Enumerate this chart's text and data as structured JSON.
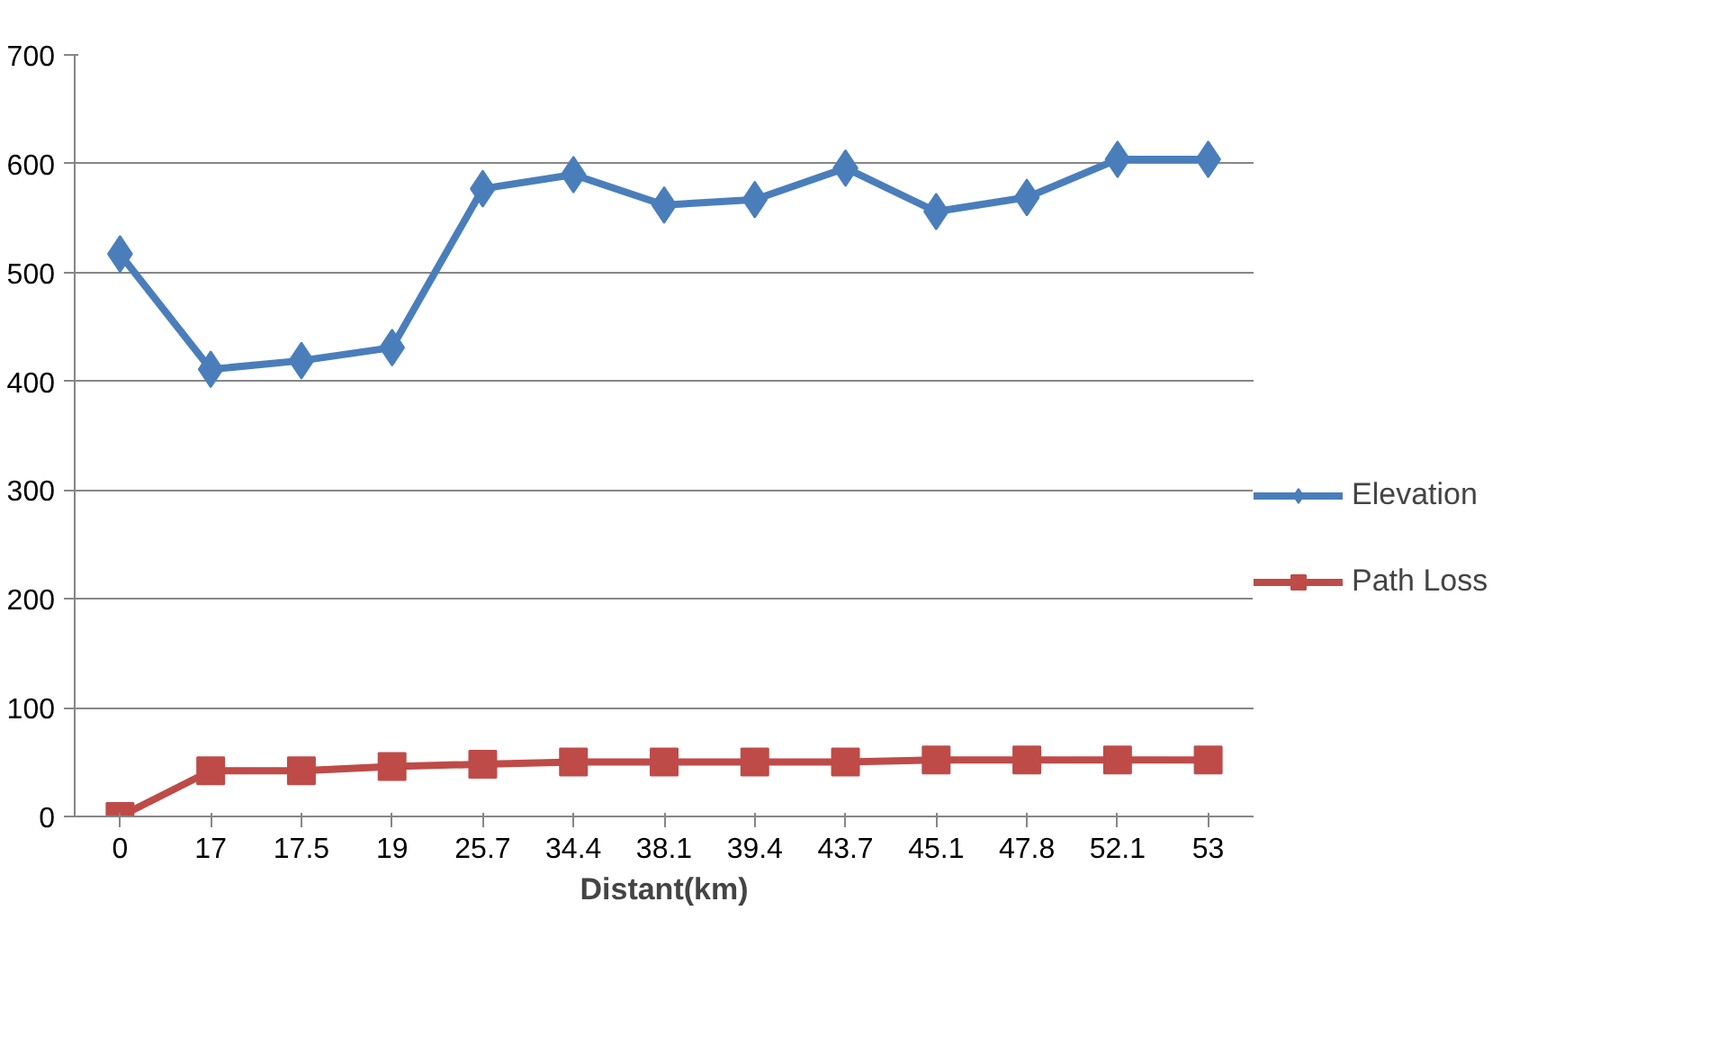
{
  "chart_data": {
    "type": "line",
    "xlabel": "Distant(km)",
    "categories": [
      "0",
      "17",
      "17.5",
      "19",
      "25.7",
      "34.4",
      "38.1",
      "39.4",
      "43.7",
      "45.1",
      "47.8",
      "52.1",
      "53"
    ],
    "series": [
      {
        "name": "Elevation",
        "color": "#4a7ebb",
        "marker": "diamond",
        "values": [
          517,
          411,
          419,
          431,
          577,
          590,
          562,
          567,
          596,
          556,
          569,
          604,
          604
        ]
      },
      {
        "name": "Path Loss",
        "color": "#be4b48",
        "marker": "square",
        "values": [
          0,
          42,
          42,
          46,
          48,
          50,
          50,
          50,
          50,
          52,
          52,
          52,
          52
        ]
      }
    ],
    "ylim": [
      0,
      700
    ],
    "yticks": [
      0,
      100,
      200,
      300,
      400,
      500,
      600,
      700
    ],
    "grid": "y",
    "legend": "right",
    "line_style": "solid"
  }
}
